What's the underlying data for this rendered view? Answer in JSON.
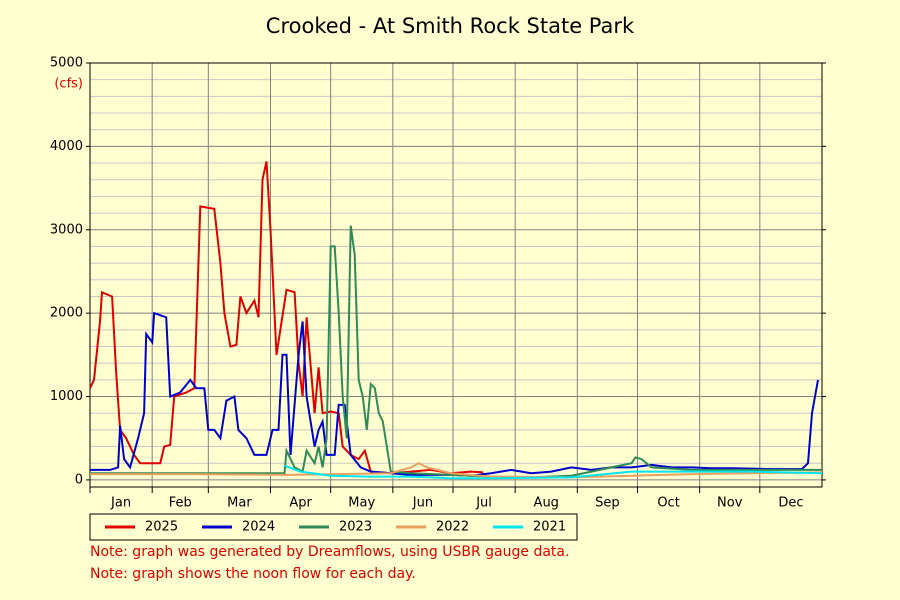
{
  "chart_data": {
    "type": "line",
    "title": "Crooked - At Smith Rock State Park",
    "y_label": "(cfs)",
    "xlim": [
      0,
      365
    ],
    "xticks": [
      {
        "value": 0,
        "label": "Jan"
      },
      {
        "value": 31,
        "label": "Feb"
      },
      {
        "value": 59,
        "label": "Mar"
      },
      {
        "value": 90,
        "label": "Apr"
      },
      {
        "value": 120,
        "label": "May"
      },
      {
        "value": 151,
        "label": "Jun"
      },
      {
        "value": 181,
        "label": "Jul"
      },
      {
        "value": 212,
        "label": "Aug"
      },
      {
        "value": 243,
        "label": "Sep"
      },
      {
        "value": 273,
        "label": "Oct"
      },
      {
        "value": 304,
        "label": "Nov"
      },
      {
        "value": 334,
        "label": "Dec"
      }
    ],
    "ylim": [
      -85,
      5000
    ],
    "yticks": [
      0,
      1000,
      2000,
      3000,
      4000,
      5000
    ],
    "minor_yticks": [
      200,
      400,
      600,
      800,
      1200,
      1400,
      1600,
      1800,
      2200,
      2400,
      2600,
      2800,
      3200,
      3400,
      3600,
      3800,
      4200,
      4400,
      4600,
      4800
    ],
    "grid": true,
    "series": [
      {
        "name": "2025",
        "color": "#e00000",
        "x": [
          0,
          2,
          5,
          6,
          11,
          13,
          15,
          18,
          22,
          25,
          35,
          37,
          40,
          42,
          48,
          52,
          55,
          62,
          65,
          67,
          70,
          73,
          75,
          78,
          82,
          84,
          86,
          88,
          90,
          93,
          98,
          102,
          104,
          106,
          108,
          112,
          114,
          116,
          120,
          124,
          126,
          130,
          134,
          137,
          140,
          150,
          160,
          170,
          180,
          190,
          196
        ],
        "values": [
          1100,
          1200,
          1900,
          2250,
          2200,
          1300,
          600,
          500,
          300,
          200,
          200,
          400,
          420,
          1000,
          1050,
          1100,
          3280,
          3250,
          2600,
          2000,
          1600,
          1620,
          2200,
          2000,
          2150,
          1950,
          3600,
          3820,
          3000,
          1500,
          2280,
          2250,
          1400,
          1000,
          1950,
          800,
          1350,
          800,
          820,
          800,
          400,
          300,
          250,
          350,
          100,
          80,
          100,
          120,
          80,
          100,
          90
        ]
      },
      {
        "name": "2024",
        "color": "#0000cc",
        "x": [
          0,
          10,
          14,
          15,
          17,
          20,
          24,
          27,
          28,
          31,
          32,
          38,
          40,
          45,
          50,
          53,
          57,
          59,
          62,
          65,
          68,
          72,
          74,
          78,
          82,
          88,
          91,
          94,
          96,
          98,
          100,
          104,
          106,
          108,
          112,
          114,
          116,
          118,
          122,
          124,
          127,
          130,
          135,
          140,
          150,
          160,
          180,
          190,
          200,
          210,
          220,
          230,
          240,
          250,
          260,
          270,
          280,
          290,
          300,
          310,
          320,
          340,
          355,
          358,
          360,
          363
        ],
        "values": [
          120,
          120,
          150,
          650,
          250,
          150,
          500,
          800,
          1750,
          1650,
          2000,
          1950,
          1000,
          1050,
          1200,
          1100,
          1100,
          600,
          600,
          500,
          950,
          1000,
          600,
          500,
          300,
          300,
          600,
          600,
          1500,
          1500,
          300,
          1500,
          1900,
          1000,
          400,
          600,
          700,
          300,
          300,
          900,
          900,
          300,
          150,
          100,
          80,
          60,
          60,
          50,
          80,
          120,
          80,
          100,
          150,
          120,
          150,
          150,
          180,
          150,
          150,
          140,
          140,
          130,
          130,
          200,
          800,
          1200
        ]
      },
      {
        "name": "2023",
        "color": "#2e8b57",
        "x": [
          0,
          50,
          97,
          98,
          102,
          106,
          108,
          112,
          114,
          116,
          118,
          120,
          122,
          124,
          126,
          128,
          130,
          132,
          134,
          136,
          138,
          140,
          142,
          144,
          146,
          148,
          150,
          160,
          180,
          200,
          220,
          240,
          250,
          260,
          270,
          272,
          275,
          280,
          300,
          330,
          365
        ],
        "values": [
          80,
          80,
          80,
          350,
          150,
          100,
          350,
          200,
          400,
          150,
          500,
          2800,
          2800,
          2000,
          1000,
          500,
          3050,
          2700,
          1200,
          1000,
          600,
          1150,
          1100,
          800,
          700,
          400,
          100,
          80,
          60,
          40,
          30,
          50,
          100,
          150,
          200,
          270,
          250,
          150,
          120,
          120,
          120
        ]
      },
      {
        "name": "2022",
        "color": "#e8a060",
        "x": [
          0,
          50,
          100,
          150,
          160,
          164,
          168,
          180,
          200,
          240,
          270,
          300,
          365
        ],
        "values": [
          70,
          70,
          60,
          80,
          150,
          200,
          150,
          80,
          40,
          30,
          50,
          70,
          90
        ]
      },
      {
        "name": "2021",
        "color": "#00e5ee",
        "x": [
          97,
          105,
          120,
          140,
          160,
          180,
          200,
          240,
          270,
          300,
          330,
          365
        ],
        "values": [
          170,
          100,
          50,
          40,
          40,
          20,
          20,
          30,
          100,
          100,
          100,
          80
        ]
      }
    ],
    "notes": [
      "Note: graph was generated by Dreamflows, using USBR gauge data.",
      "Note: graph shows the noon flow for each day."
    ]
  }
}
